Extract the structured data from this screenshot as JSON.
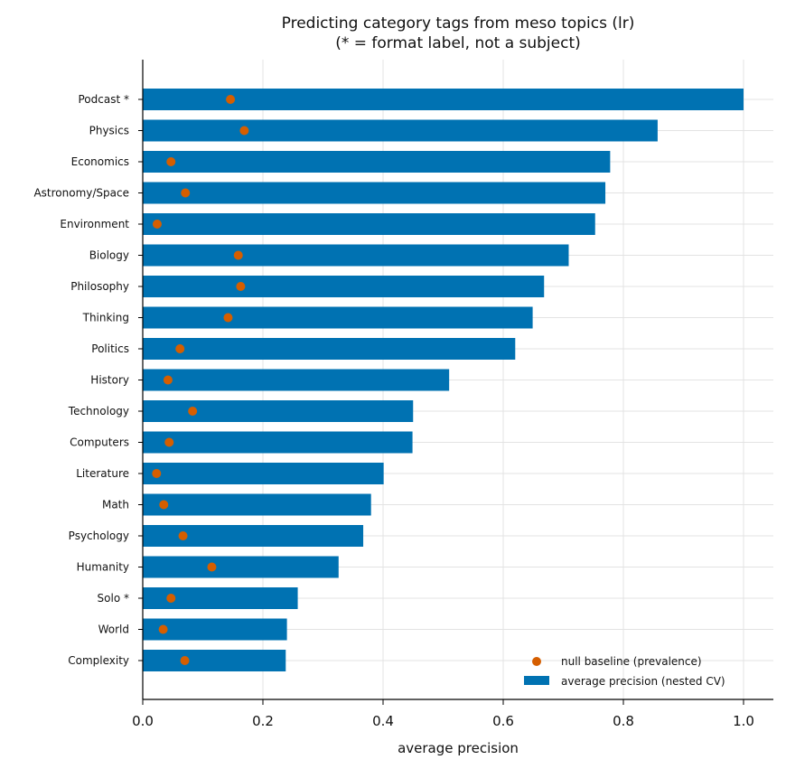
{
  "chart_data": {
    "type": "bar",
    "orientation": "horizontal",
    "title": "Predicting category tags from meso topics (lr)",
    "subtitle": "(* = format label, not a subject)",
    "xlabel": "average precision",
    "ylabel": "",
    "xlim": [
      0.0,
      1.05
    ],
    "xticks": [
      "0.0",
      "0.2",
      "0.4",
      "0.6",
      "0.8",
      "1.0"
    ],
    "grid": true,
    "legend_position": "lower-right",
    "categories": [
      "Podcast *",
      "Physics",
      "Economics",
      "Astronomy/Space",
      "Environment",
      "Biology",
      "Philosophy",
      "Thinking",
      "Politics",
      "History",
      "Technology",
      "Computers",
      "Literature",
      "Math",
      "Psychology",
      "Humanity",
      "Solo *",
      "World",
      "Complexity"
    ],
    "series": [
      {
        "name": "average precision (nested CV)",
        "kind": "bar",
        "color": "#0072b2",
        "values": [
          1.0,
          0.857,
          0.778,
          0.77,
          0.753,
          0.709,
          0.668,
          0.649,
          0.62,
          0.51,
          0.45,
          0.449,
          0.401,
          0.38,
          0.367,
          0.326,
          0.258,
          0.24,
          0.238
        ]
      },
      {
        "name": "null baseline (prevalence)",
        "kind": "scatter",
        "color": "#d55e00",
        "values": [
          0.146,
          0.169,
          0.047,
          0.071,
          0.024,
          0.159,
          0.163,
          0.142,
          0.062,
          0.042,
          0.083,
          0.044,
          0.023,
          0.035,
          0.067,
          0.115,
          0.047,
          0.034,
          0.07
        ]
      }
    ]
  }
}
